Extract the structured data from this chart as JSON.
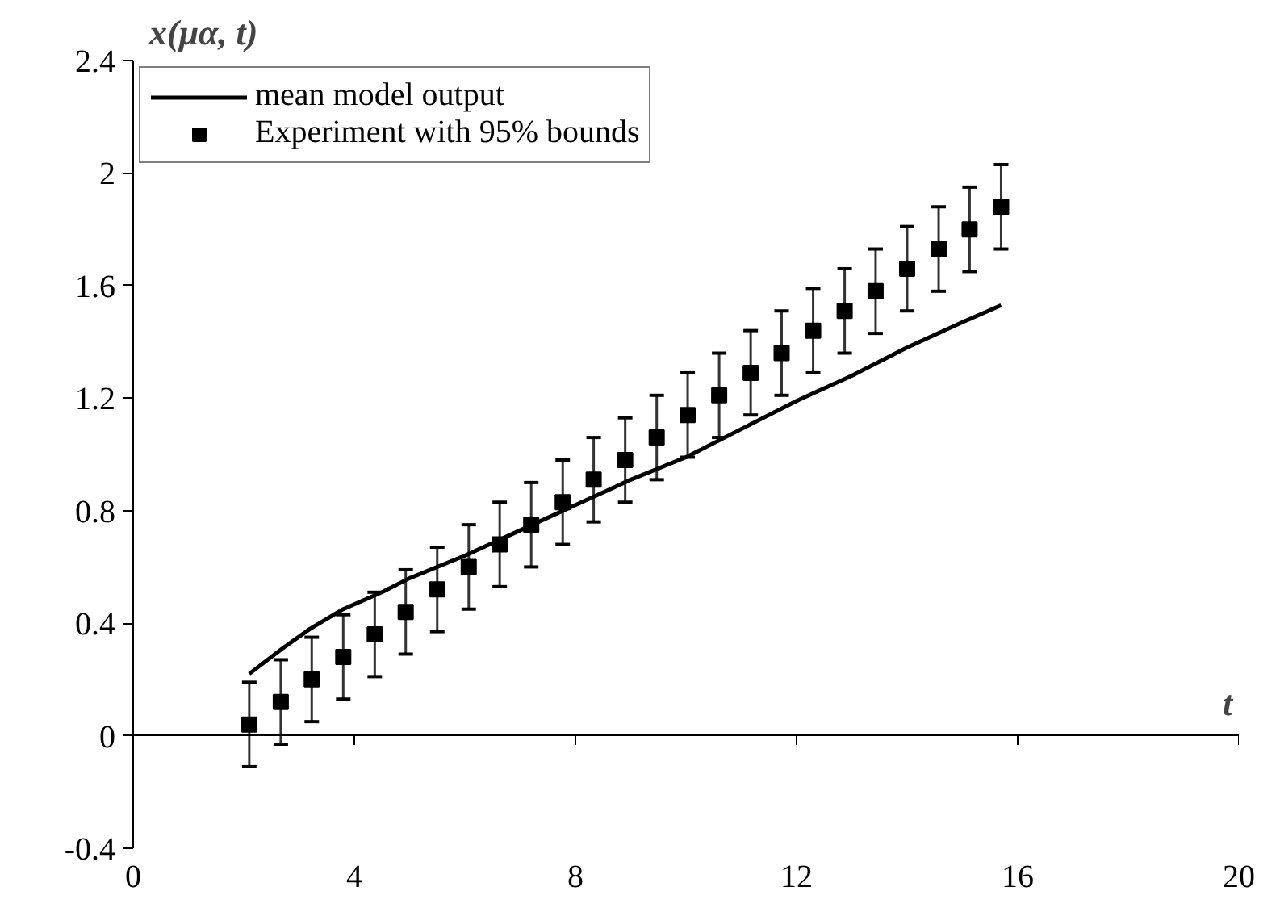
{
  "chart_data": {
    "type": "line",
    "xlabel": "t",
    "ylabel": "x(μα, t)",
    "xlim": [
      0,
      20
    ],
    "ylim": [
      -0.4,
      2.4
    ],
    "xticks": [
      0,
      4,
      8,
      12,
      16,
      20
    ],
    "yticks": [
      -0.4,
      0,
      0.4,
      0.8,
      1.2,
      1.6,
      2,
      2.4
    ],
    "legend": "top left",
    "series": [
      {
        "name": "mean model output",
        "color": "#000000",
        "line_style": "solid",
        "marker": "none",
        "x": [
          2.1,
          2.7,
          3.2,
          3.8,
          4.5,
          5,
          6,
          7,
          8,
          9,
          10,
          11,
          12,
          13,
          14,
          15,
          15.7
        ],
        "values": [
          0.22,
          0.31,
          0.38,
          0.45,
          0.51,
          0.56,
          0.64,
          0.73,
          0.82,
          0.91,
          0.99,
          1.09,
          1.19,
          1.28,
          1.38,
          1.47,
          1.53
        ]
      },
      {
        "name": "Experiment with 95% bounds",
        "type": "scatter",
        "color": "#000000",
        "marker": "square",
        "x": [
          2.1,
          2.67,
          3.23,
          3.8,
          4.37,
          4.93,
          5.5,
          6.07,
          6.63,
          7.2,
          7.77,
          8.33,
          8.9,
          9.47,
          10.03,
          10.6,
          11.17,
          11.73,
          12.3,
          12.87,
          13.43,
          14.0,
          14.57,
          15.13,
          15.7
        ],
        "values": [
          0.04,
          0.12,
          0.2,
          0.28,
          0.36,
          0.44,
          0.52,
          0.6,
          0.68,
          0.75,
          0.83,
          0.91,
          0.98,
          1.06,
          1.14,
          1.21,
          1.29,
          1.36,
          1.44,
          1.51,
          1.58,
          1.66,
          1.73,
          1.8,
          1.88
        ],
        "errors": [
          0.15,
          0.15,
          0.15,
          0.15,
          0.15,
          0.15,
          0.15,
          0.15,
          0.15,
          0.15,
          0.15,
          0.15,
          0.15,
          0.15,
          0.15,
          0.15,
          0.15,
          0.15,
          0.15,
          0.15,
          0.15,
          0.15,
          0.15,
          0.15,
          0.15
        ]
      }
    ]
  }
}
